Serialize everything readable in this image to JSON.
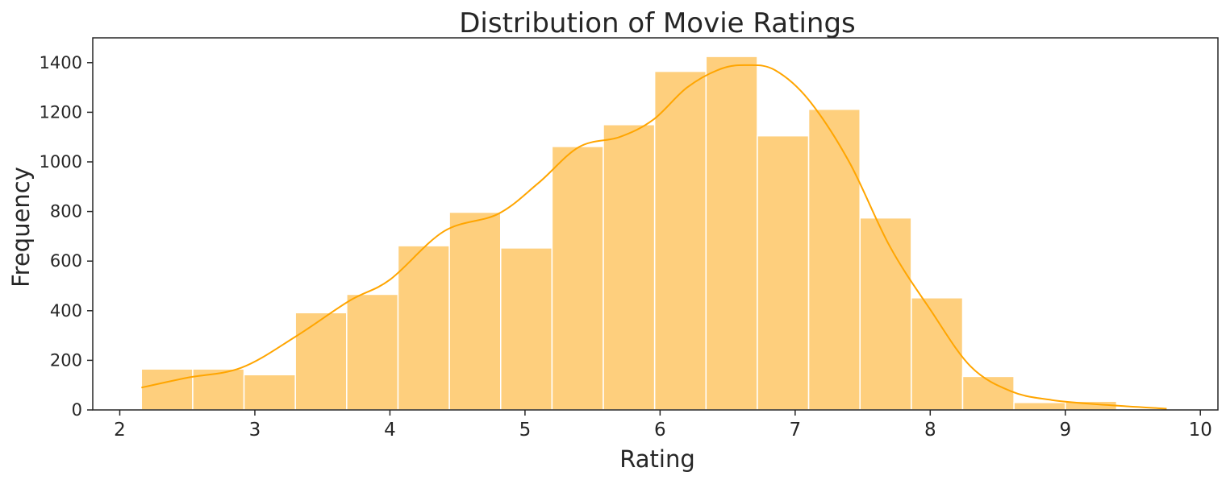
{
  "chart_data": {
    "type": "bar",
    "subtype": "histogram",
    "title": "Distribution of Movie Ratings",
    "xlabel": "Rating",
    "ylabel": "Frequency",
    "xlim": [
      1.8,
      10.13
    ],
    "ylim": [
      0,
      1500
    ],
    "xticks": [
      "2",
      "3",
      "4",
      "5",
      "6",
      "7",
      "8",
      "9",
      "10"
    ],
    "yticks": [
      "0",
      "200",
      "400",
      "600",
      "800",
      "1000",
      "1200",
      "1400"
    ],
    "bins": [
      {
        "x0": 2.16,
        "x1": 2.54,
        "count": 165
      },
      {
        "x0": 2.54,
        "x1": 2.92,
        "count": 165
      },
      {
        "x0": 2.92,
        "x1": 3.3,
        "count": 142
      },
      {
        "x0": 3.3,
        "x1": 3.68,
        "count": 392
      },
      {
        "x0": 3.68,
        "x1": 4.06,
        "count": 466
      },
      {
        "x0": 4.06,
        "x1": 4.44,
        "count": 662
      },
      {
        "x0": 4.44,
        "x1": 4.82,
        "count": 797
      },
      {
        "x0": 4.82,
        "x1": 5.2,
        "count": 653
      },
      {
        "x0": 5.2,
        "x1": 5.58,
        "count": 1062
      },
      {
        "x0": 5.58,
        "x1": 5.96,
        "count": 1150
      },
      {
        "x0": 5.96,
        "x1": 6.34,
        "count": 1365
      },
      {
        "x0": 6.34,
        "x1": 6.72,
        "count": 1425
      },
      {
        "x0": 6.72,
        "x1": 7.1,
        "count": 1105
      },
      {
        "x0": 7.1,
        "x1": 7.48,
        "count": 1212
      },
      {
        "x0": 7.48,
        "x1": 7.86,
        "count": 774
      },
      {
        "x0": 7.86,
        "x1": 8.24,
        "count": 452
      },
      {
        "x0": 8.24,
        "x1": 8.62,
        "count": 135
      },
      {
        "x0": 8.62,
        "x1": 9.0,
        "count": 30
      },
      {
        "x0": 9.0,
        "x1": 9.38,
        "count": 35
      }
    ],
    "kde": {
      "x": [
        2.16,
        2.5,
        2.9,
        3.3,
        3.7,
        4.0,
        4.4,
        4.8,
        5.1,
        5.4,
        5.7,
        5.95,
        6.2,
        6.45,
        6.65,
        6.85,
        7.1,
        7.4,
        7.7,
        8.0,
        8.3,
        8.6,
        8.9,
        9.3,
        9.75
      ],
      "y": [
        90,
        130,
        170,
        295,
        440,
        525,
        720,
        790,
        915,
        1060,
        1100,
        1170,
        1300,
        1375,
        1390,
        1370,
        1250,
        1000,
        660,
        405,
        175,
        75,
        40,
        20,
        5
      ]
    },
    "colors": {
      "bar_fill": "#fecf7d",
      "bar_edge": "#ffffff",
      "kde_line": "#ffa500",
      "axis": "#262626",
      "text": "#262626"
    },
    "grid": false,
    "legend": "none"
  }
}
